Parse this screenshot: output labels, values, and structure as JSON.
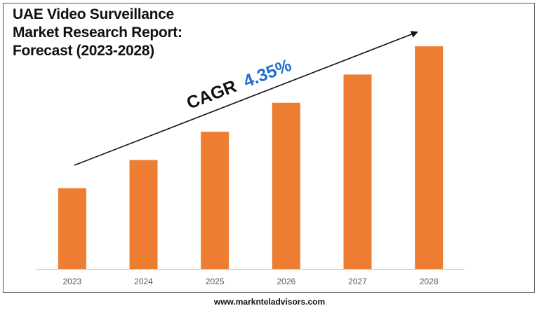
{
  "title_lines": [
    "UAE Video Surveillance",
    "Market Research Report:",
    "Forecast (2023-2028)"
  ],
  "cagr": {
    "label": "CAGR",
    "value": "4.35%",
    "label_color": "#111111",
    "value_color": "#1f6fd1"
  },
  "footer": {
    "url": "www.marknteladvisors.com"
  },
  "colors": {
    "bar": "#ed7d31",
    "axis": "#bfbfbf",
    "arrow": "#111111"
  },
  "chart_data": {
    "type": "bar",
    "categories": [
      "2023",
      "2024",
      "2025",
      "2026",
      "2027",
      "2028"
    ],
    "values": [
      1.0,
      1.35,
      1.7,
      2.06,
      2.41,
      2.76
    ],
    "ylim": [
      0,
      2.9
    ],
    "grid": false,
    "legend": "none",
    "title": "UAE Video Surveillance Market Research Report: Forecast (2023-2028)",
    "annotations": [
      "CAGR 4.35%"
    ]
  }
}
